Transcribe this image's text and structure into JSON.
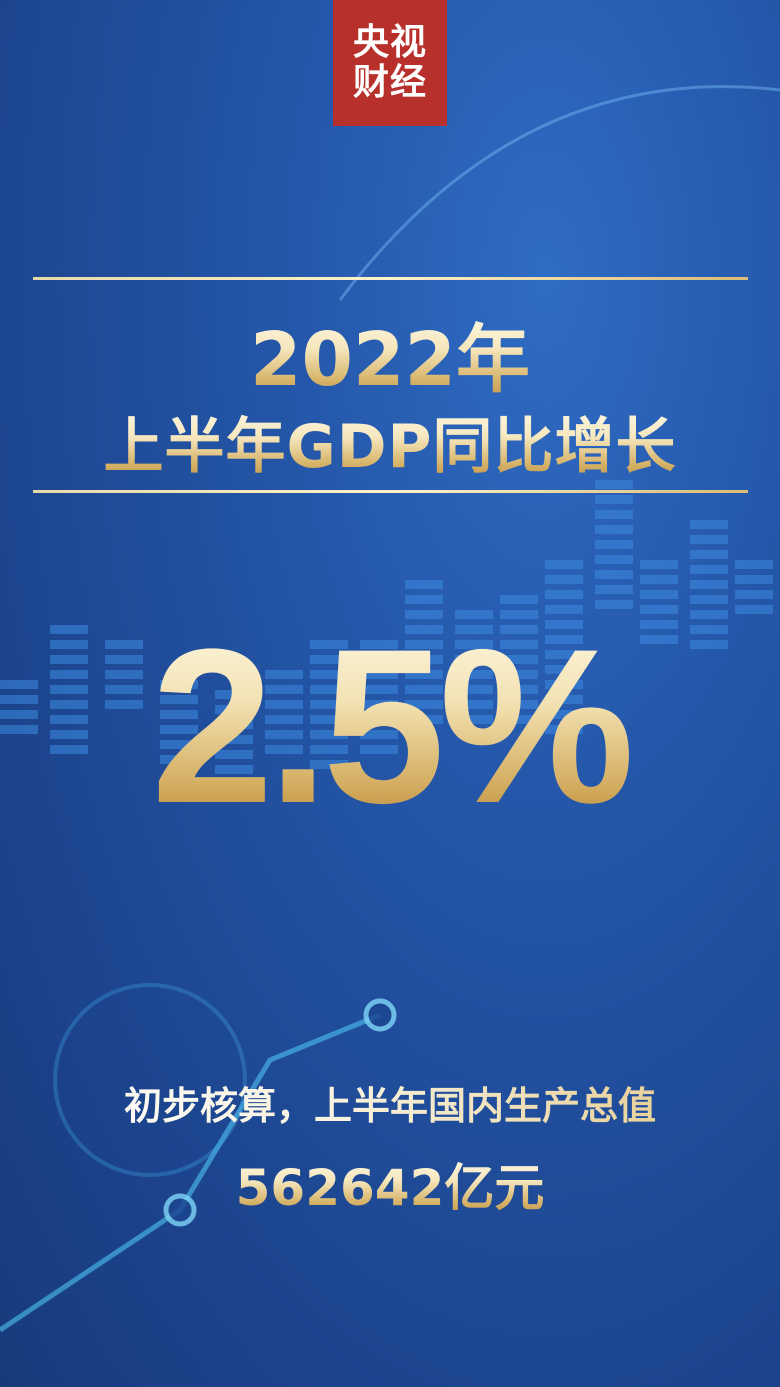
{
  "logo": {
    "line1": "央视",
    "line2": "财经",
    "bg_color": "#b8302b"
  },
  "headline": {
    "year": "2022年",
    "subtitle": "上半年GDP同比增长"
  },
  "growth_rate": "2.5%",
  "summary": {
    "text": "初步核算，上半年国内生产总值",
    "value": "562642亿元"
  },
  "colors": {
    "background": "#2456a8",
    "gold": "#d7b46a"
  }
}
